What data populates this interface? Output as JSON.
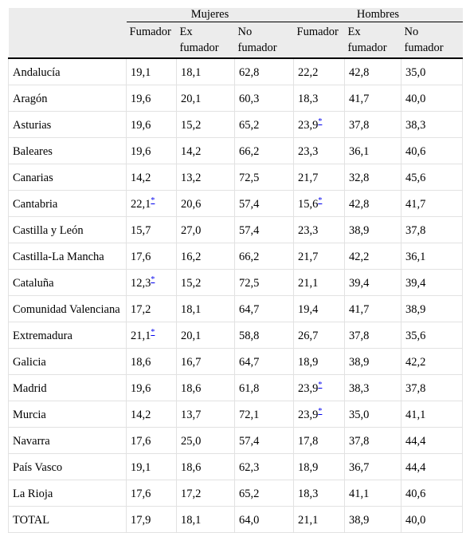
{
  "table": {
    "groups": [
      "Mujeres",
      "Hombres"
    ],
    "columns": [
      [
        "Fumador",
        "Ex fumador",
        "No fumador"
      ],
      [
        "Fumador",
        "Ex fumador",
        "No fumador"
      ]
    ],
    "rows": [
      [
        "Andalucía",
        "19,1",
        "18,1",
        "62,8",
        "22,2",
        "42,8",
        "35,0"
      ],
      [
        "Aragón",
        "19,6",
        "20,1",
        "60,3",
        "18,3",
        "41,7",
        "40,0"
      ],
      [
        "Asturias",
        "19,6",
        "15,2",
        "65,2",
        {
          "text": "23,9",
          "note": "*"
        },
        "37,8",
        "38,3"
      ],
      [
        "Baleares",
        "19,6",
        "14,2",
        "66,2",
        "23,3",
        "36,1",
        "40,6"
      ],
      [
        "Canarias",
        "14,2",
        "13,2",
        "72,5",
        "21,7",
        "32,8",
        "45,6"
      ],
      [
        "Cantabria",
        {
          "text": "22,1",
          "note": "*"
        },
        "20,6",
        "57,4",
        {
          "text": "15,6",
          "note": "*"
        },
        "42,8",
        "41,7"
      ],
      [
        "Castilla y León",
        "15,7",
        "27,0",
        "57,4",
        "23,3",
        "38,9",
        "37,8"
      ],
      [
        "Castilla-La Mancha",
        "17,6",
        "16,2",
        "66,2",
        "21,7",
        "42,2",
        "36,1"
      ],
      [
        "Cataluña",
        {
          "text": "12,3",
          "note": "*"
        },
        "15,2",
        "72,5",
        "21,1",
        "39,4",
        "39,4"
      ],
      [
        "Comunidad Valenciana",
        "17,2",
        "18,1",
        "64,7",
        "19,4",
        "41,7",
        "38,9"
      ],
      [
        "Extremadura",
        {
          "text": "21,1",
          "note": "*"
        },
        "20,1",
        "58,8",
        "26,7",
        "37,8",
        "35,6"
      ],
      [
        "Galicia",
        "18,6",
        "16,7",
        "64,7",
        "18,9",
        "38,9",
        "42,2"
      ],
      [
        "Madrid",
        "19,6",
        "18,6",
        "61,8",
        {
          "text": "23,9",
          "note": "*"
        },
        "38,3",
        "37,8"
      ],
      [
        "Murcia",
        "14,2",
        "13,7",
        "72,1",
        {
          "text": "23,9",
          "note": "*"
        },
        "35,0",
        "41,1"
      ],
      [
        "Navarra",
        "17,6",
        "25,0",
        "57,4",
        "17,8",
        "37,8",
        "44,4"
      ],
      [
        "País Vasco",
        "19,1",
        "18,6",
        "62,3",
        "18,9",
        "36,7",
        "44,4"
      ],
      [
        "La Rioja",
        "17,6",
        "17,2",
        "65,2",
        "18,3",
        "41,1",
        "40,6"
      ],
      [
        "TOTAL",
        "17,9",
        "18,1",
        "64,0",
        "21,1",
        "38,9",
        "40,0"
      ]
    ]
  }
}
